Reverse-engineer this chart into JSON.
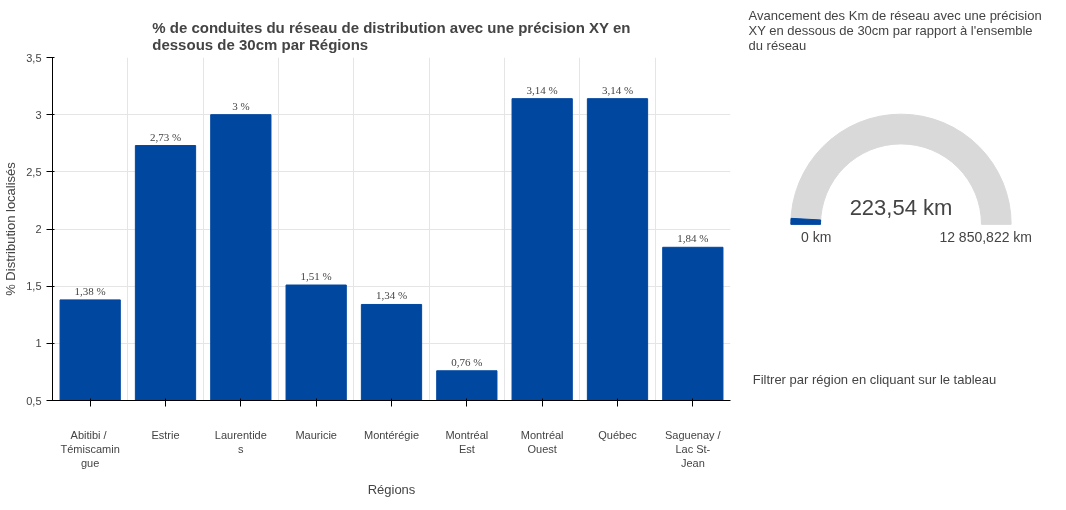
{
  "chart_data": [
    {
      "type": "bar",
      "title": "% de conduites du réseau de distribution avec une précision XY en dessous de 30cm par Régions",
      "xlabel": "Régions",
      "ylabel": "% Distribution localisés",
      "categories": [
        "Abitibi / Témiscamingue",
        "Estrie",
        "Laurentides",
        "Mauricie",
        "Montérégie",
        "Montréal Est",
        "Montréal Ouest",
        "Québec",
        "Saguenay / Lac St-Jean"
      ],
      "values": [
        1.38,
        2.73,
        3,
        1.51,
        1.34,
        0.76,
        3.14,
        3.14,
        1.84
      ],
      "value_labels": [
        "1,38 %",
        "2,73 %",
        "3 %",
        "1,51 %",
        "1,34 %",
        "0,76 %",
        "3,14 %",
        "3,14 %",
        "1,84 %"
      ],
      "color": "#0047a0",
      "ylim": [
        0.5,
        3.5
      ],
      "yticks": [
        {
          "value": 0.5,
          "label": "0,5"
        },
        1,
        {
          "value": 1.5,
          "label": "1,5"
        },
        2,
        {
          "value": 2.5,
          "label": "2,5"
        },
        3,
        {
          "value": 3.5,
          "label": "3,5"
        }
      ],
      "grid": true
    },
    {
      "type": "other",
      "title": "Avancement des Km de réseau avec une précision XY en dessous de 30cm par rapport à l'ensemble du réseau",
      "values": [
        223.54,
        12850.822
      ],
      "value_labels": [
        "223,54 km",
        "12 850,822 km"
      ],
      "colors": [
        "#0047a0",
        "#d9d9d9"
      ],
      "annotations": [
        "0 km",
        "Filtrer par région en cliquant sur le tableau"
      ]
    }
  ]
}
